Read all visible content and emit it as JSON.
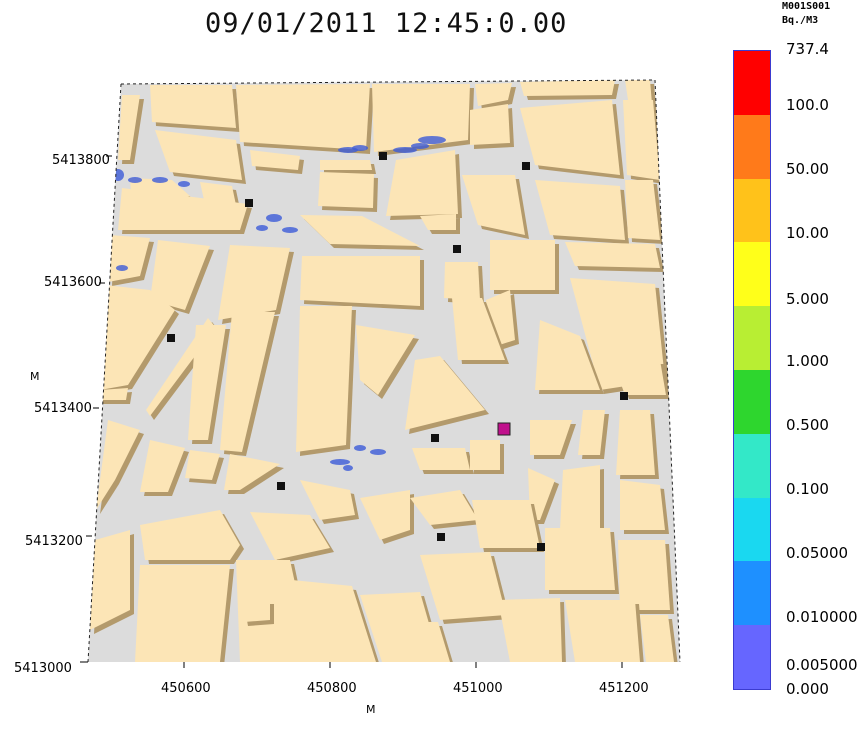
{
  "title": "09/01/2011 12:45:0.00",
  "legend": {
    "variable": "M001S001",
    "unit": "Bq./M3",
    "levels": [
      "737.4",
      "100.0",
      "50.00",
      "10.00",
      "5.000",
      "1.000",
      "0.500",
      "0.100",
      "0.05000",
      "0.010000",
      "0.005000",
      "0.000"
    ],
    "colors": [
      "#ff0000",
      "#ff7a1a",
      "#ffc21a",
      "#ffff1a",
      "#b8ee33",
      "#2ed62e",
      "#33e8c8",
      "#1ad8f0",
      "#1e90ff",
      "#6666ff"
    ]
  },
  "axes": {
    "x_unit": "M",
    "y_unit": "M",
    "x_ticks": [
      "450600",
      "450800",
      "451000",
      "451200"
    ],
    "y_ticks": [
      "5413800",
      "5413600",
      "5413400",
      "5413200",
      "5413000"
    ]
  },
  "colors": {
    "building": "#fce5b6",
    "building_shadow": "#b39a6c",
    "street": "#dcdcdc",
    "plume": "#3c5bd8",
    "source": "#c0108c",
    "receptor": "#111111"
  },
  "map": {
    "receptor_count": 10,
    "source_count": 1
  }
}
